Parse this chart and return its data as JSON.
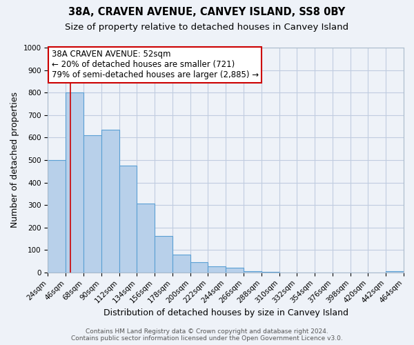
{
  "title": "38A, CRAVEN AVENUE, CANVEY ISLAND, SS8 0BY",
  "subtitle": "Size of property relative to detached houses in Canvey Island",
  "xlabel": "Distribution of detached houses by size in Canvey Island",
  "ylabel": "Number of detached properties",
  "bin_edges": [
    24,
    46,
    68,
    90,
    112,
    134,
    156,
    178,
    200,
    222,
    244,
    266,
    288,
    310,
    332,
    354,
    376,
    398,
    420,
    442,
    464
  ],
  "counts": [
    500,
    800,
    610,
    635,
    475,
    305,
    163,
    78,
    47,
    27,
    20,
    7,
    2,
    1,
    0,
    0,
    0,
    0,
    0,
    5
  ],
  "bar_color": "#b8d0ea",
  "bar_edge_color": "#5a9fd4",
  "property_size": 52,
  "property_line_color": "#cc0000",
  "annotation_line1": "38A CRAVEN AVENUE: 52sqm",
  "annotation_line2": "← 20% of detached houses are smaller (721)",
  "annotation_line3": "79% of semi-detached houses are larger (2,885) →",
  "annotation_box_facecolor": "#ffffff",
  "annotation_box_edgecolor": "#cc0000",
  "ylim": [
    0,
    1000
  ],
  "yticks": [
    0,
    100,
    200,
    300,
    400,
    500,
    600,
    700,
    800,
    900,
    1000
  ],
  "footer_line1": "Contains HM Land Registry data © Crown copyright and database right 2024.",
  "footer_line2": "Contains public sector information licensed under the Open Government Licence v3.0.",
  "background_color": "#eef2f8",
  "grid_color": "#c0cce0",
  "title_fontsize": 10.5,
  "subtitle_fontsize": 9.5,
  "axis_label_fontsize": 9,
  "tick_fontsize": 7.5,
  "annotation_fontsize": 8.5,
  "footer_fontsize": 6.5
}
